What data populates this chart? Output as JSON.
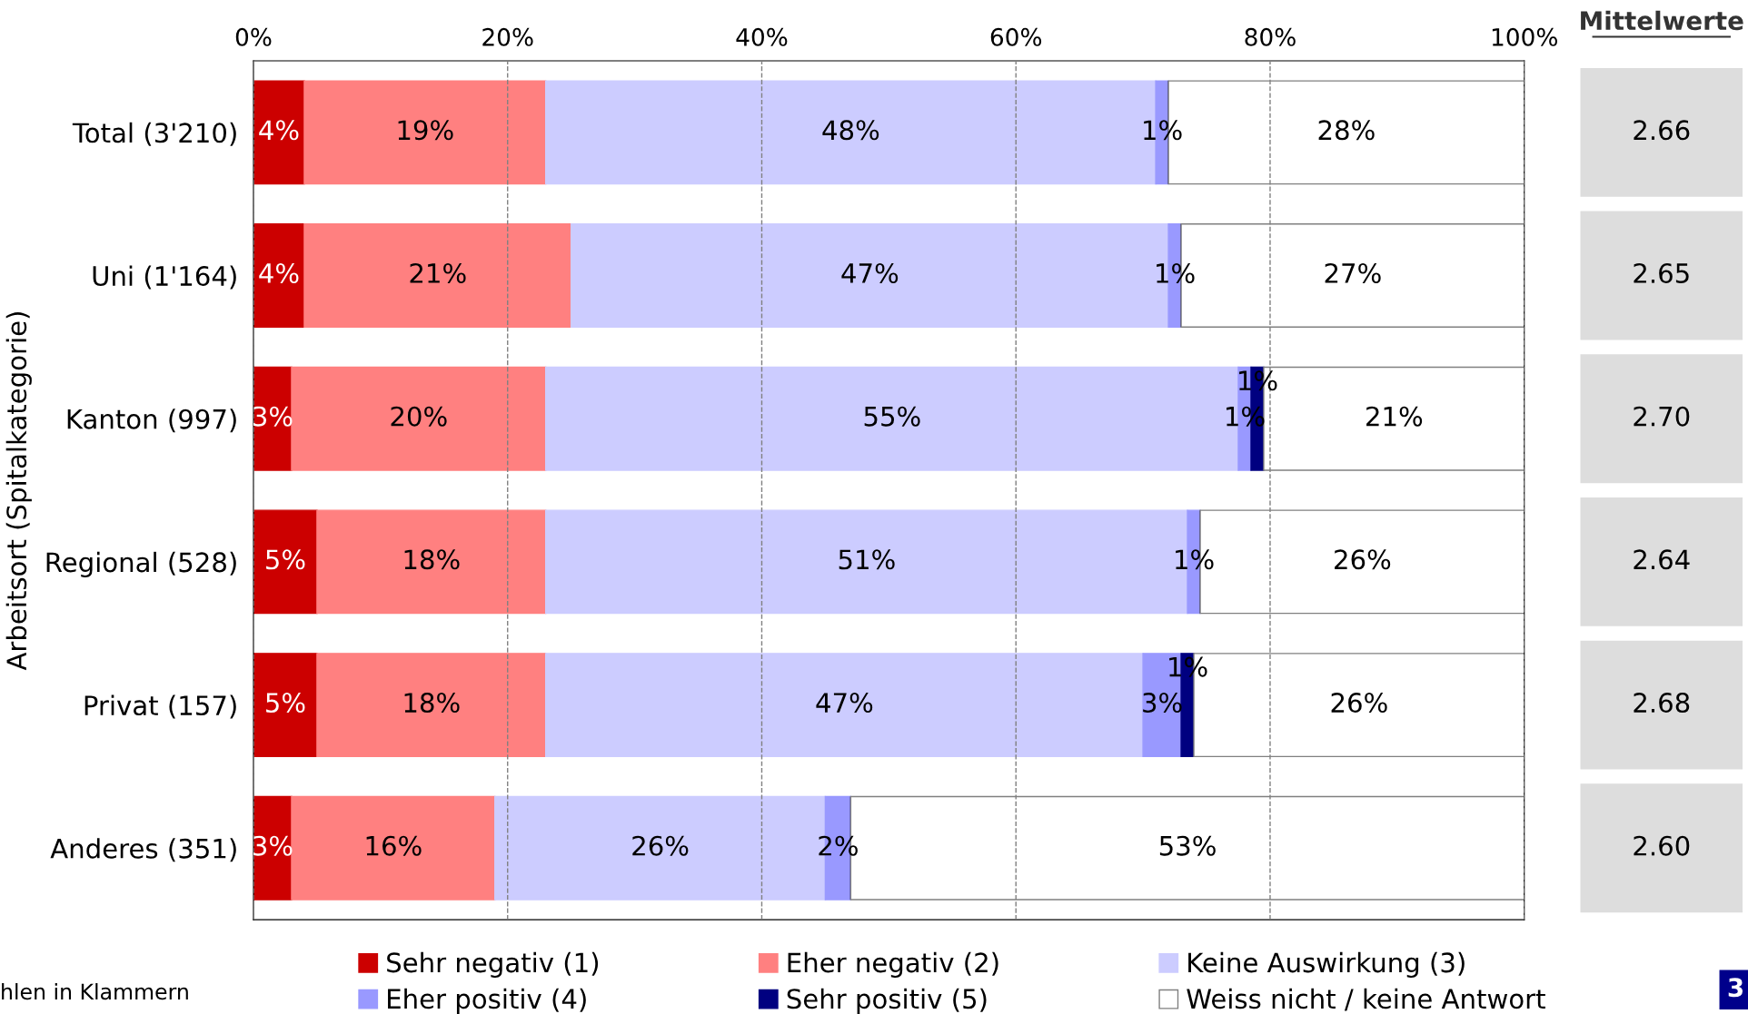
{
  "chart_data": [
    {
      "type": "bar",
      "orientation": "horizontal",
      "stacked": true,
      "ylabel": "Arbeitsort (Spitalkategorie)",
      "categories": [
        "Total (3'210)",
        "Uni (1'164)",
        "Kanton (997)",
        "Regional (528)",
        "Privat (157)",
        "Anderes (351)"
      ],
      "series": [
        {
          "name": "Sehr negativ (1)",
          "color": "#cc0000",
          "values": [
            4,
            4,
            3,
            5,
            5,
            3
          ],
          "value_labels": [
            "4%",
            "4%",
            "3%",
            "5%",
            "5%",
            "3%"
          ]
        },
        {
          "name": "Eher negativ (2)",
          "color": "#ff8080",
          "values": [
            19,
            21,
            20,
            18,
            18,
            16
          ],
          "value_labels": [
            "19%",
            "21%",
            "20%",
            "18%",
            "18%",
            "16%"
          ]
        },
        {
          "name": "Keine Auswirkung (3)",
          "color": "#ccccff",
          "values": [
            48,
            47,
            54.5,
            50.5,
            47,
            26
          ],
          "value_labels": [
            "48%",
            "47%",
            "55%",
            "51%",
            "47%",
            "26%"
          ]
        },
        {
          "name": "Eher positiv (4)",
          "color": "#9999ff",
          "values": [
            1,
            1,
            1,
            1,
            3,
            2
          ],
          "value_labels": [
            "1%",
            "1%",
            "1%",
            "1%",
            "3%",
            "2%"
          ]
        },
        {
          "name": "Sehr positiv (5)",
          "color": "#000080",
          "values": [
            0,
            0,
            1,
            0,
            1,
            0
          ],
          "value_labels": [
            null,
            null,
            "1%",
            null,
            "1%",
            null
          ]
        },
        {
          "name": "Weiss nicht / keine Antwort",
          "color": "#ffffff",
          "values": [
            28,
            27,
            20.5,
            25.5,
            26,
            53
          ],
          "value_labels": [
            "28%",
            "27%",
            "21%",
            "26%",
            "26%",
            "53%"
          ]
        }
      ],
      "xlim": [
        0,
        100
      ],
      "xticks": [
        {
          "value": 0,
          "label": "0%"
        },
        {
          "value": 20,
          "label": "20%"
        },
        {
          "value": 40,
          "label": "40%"
        },
        {
          "value": 60,
          "label": "60%"
        },
        {
          "value": 80,
          "label": "80%"
        },
        {
          "value": 100,
          "label": "100%"
        }
      ],
      "grid": "x",
      "legend": "bottom",
      "annotations": [
        "hlen in Klammern",
        "3"
      ]
    },
    {
      "type": "other",
      "title": "Mittelwerte",
      "value_labels": [
        "2.66",
        "2.65",
        "2.70",
        "2.64",
        "2.68",
        "2.60"
      ]
    }
  ]
}
